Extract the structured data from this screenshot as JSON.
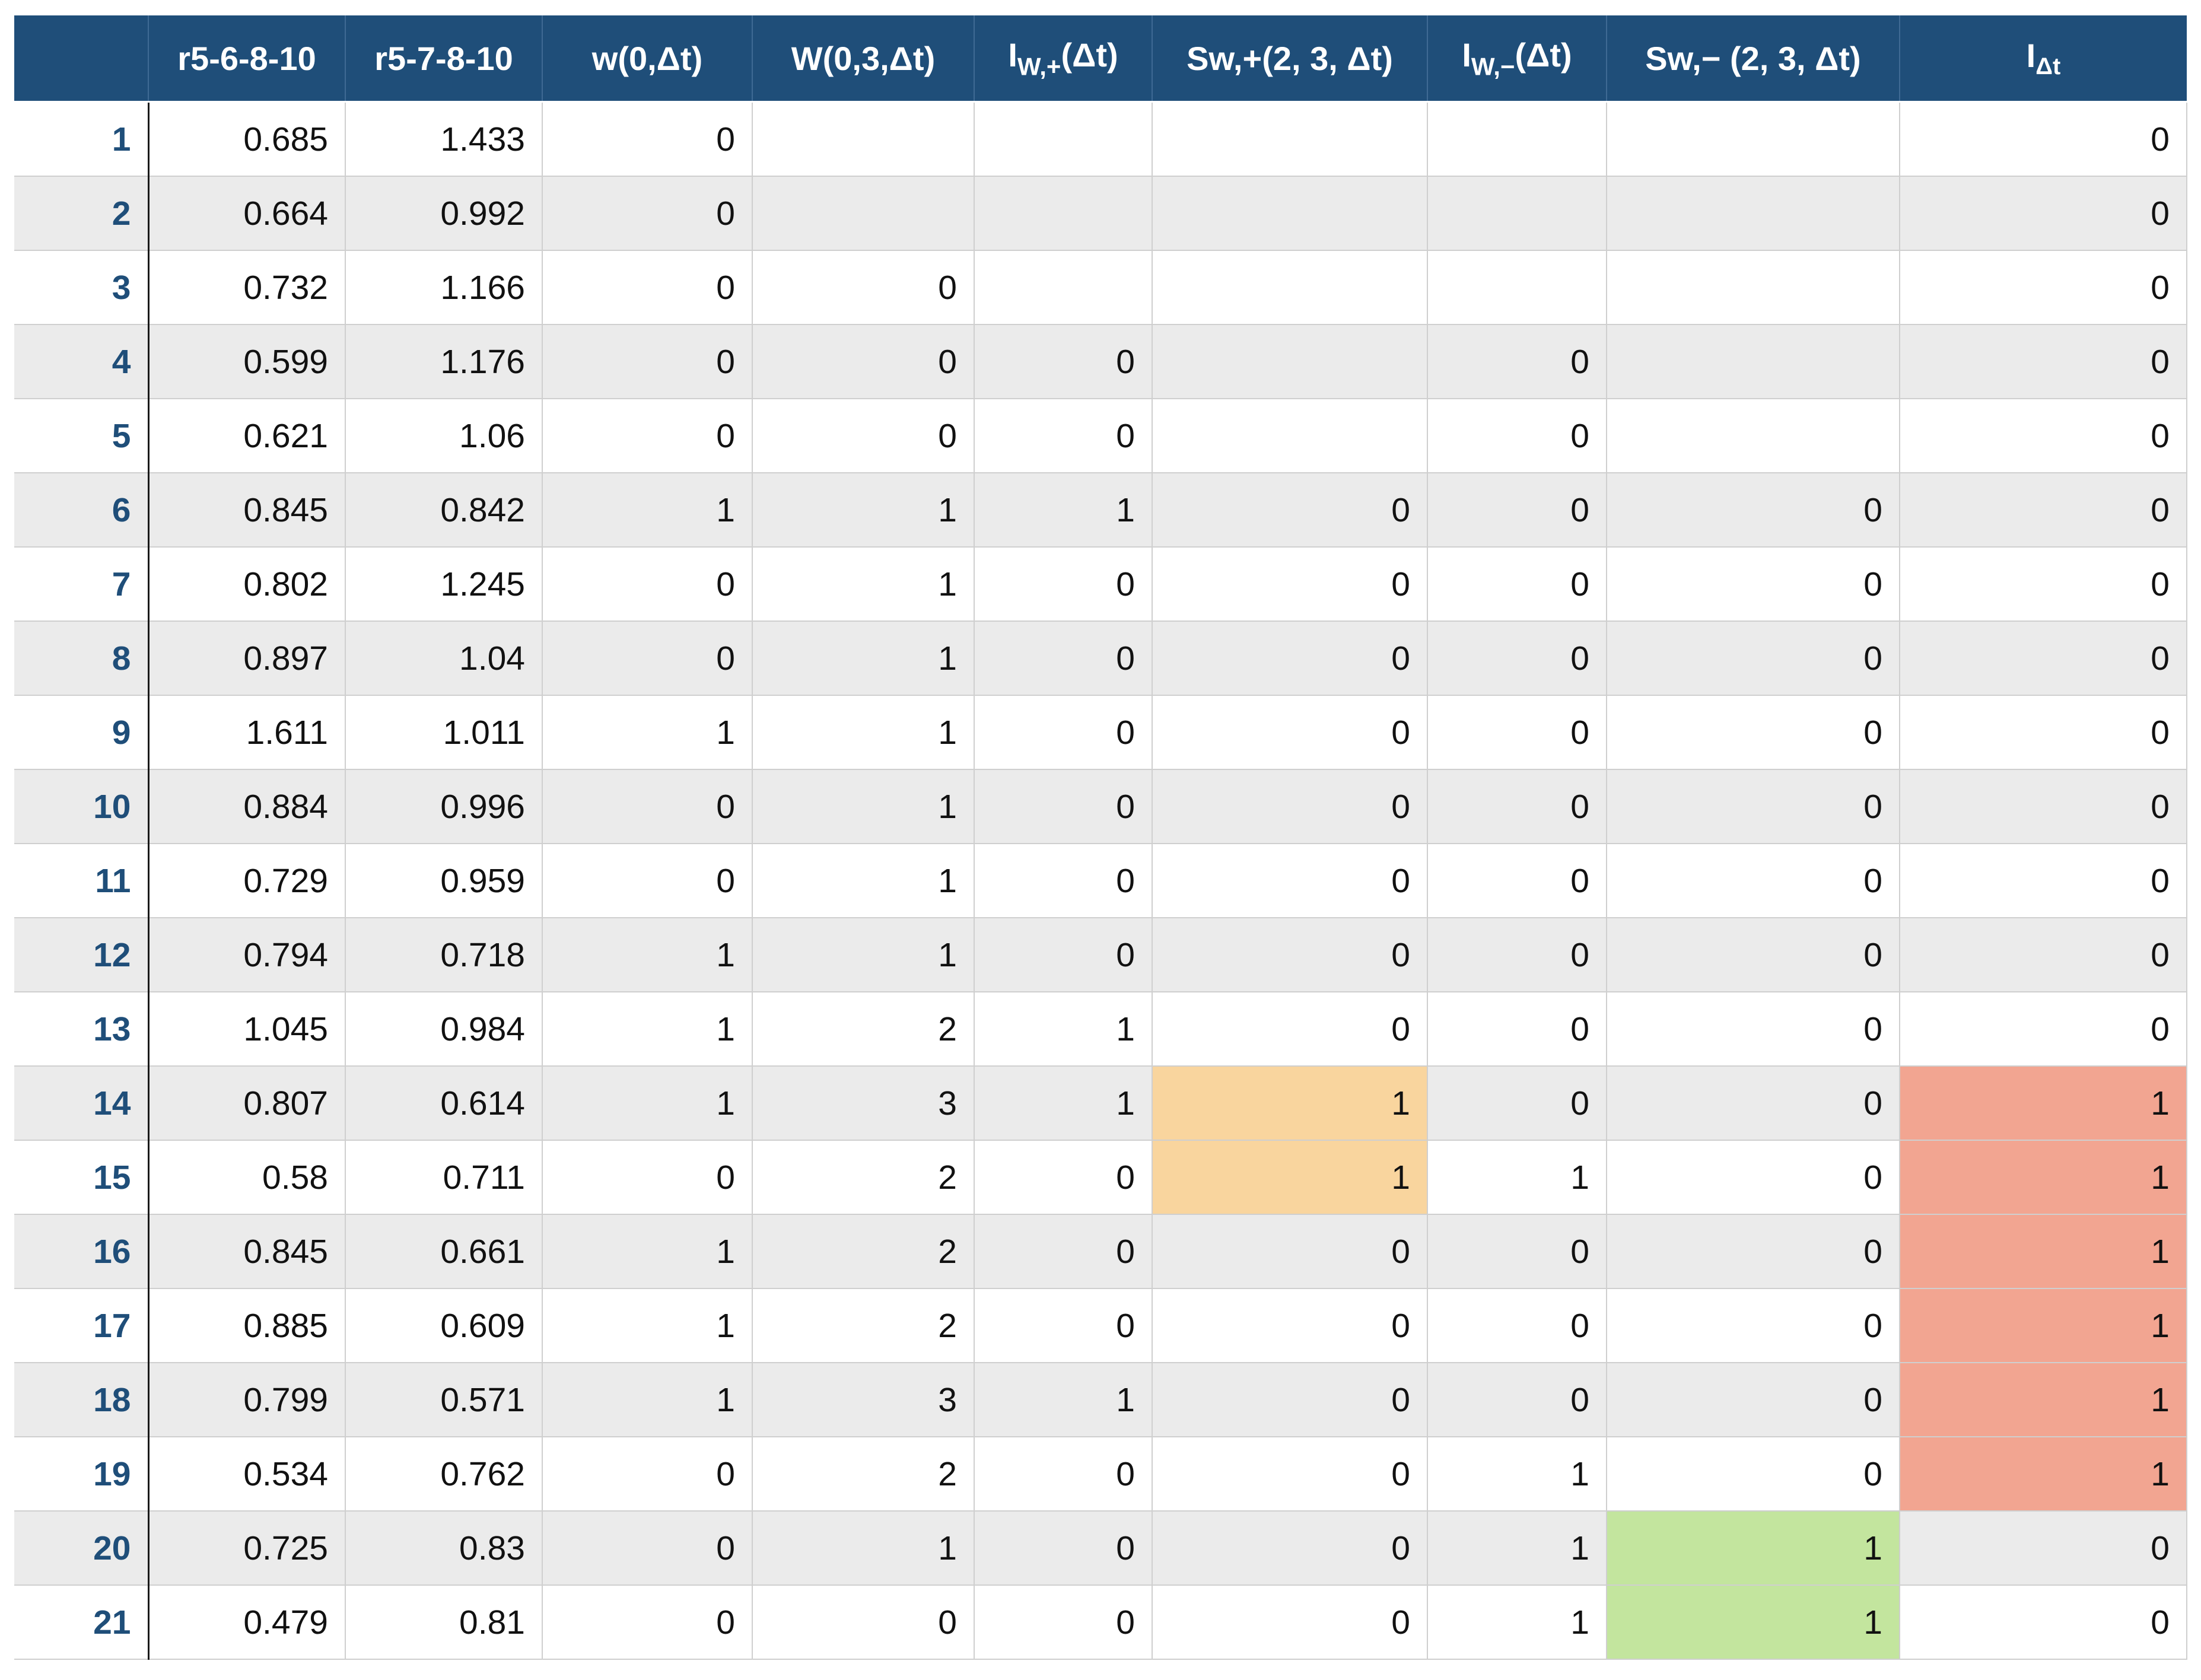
{
  "table": {
    "headers": {
      "index": "",
      "r5_6_8_10": "r5-6-8-10",
      "r5_7_8_10": "r5-7-8-10",
      "w_main": "w(0,Δt)",
      "W_main": "W(0,3,Δt)",
      "Iw_plus_main": "I",
      "Iw_plus_sub": "W,+",
      "Iw_plus_tail": "(Δt)",
      "Sw_plus_main": "S",
      "Sw_plus_sub": "w,+",
      "Sw_plus_tail": "(2, 3, Δt)",
      "Iw_minus_main": "I",
      "Iw_minus_sub": "W,−",
      "Iw_minus_tail": "(Δt)",
      "Sw_minus_main": "S",
      "Sw_minus_sub": "w,−",
      "Sw_minus_tail": " (2, 3, Δt)",
      "Idt_main": "I",
      "Idt_sub": "Δt"
    },
    "rows": [
      {
        "idx": "1",
        "r5_6": "0.685",
        "r5_7": "1.433",
        "w": "0",
        "W": "",
        "iw_plus": "",
        "sw_plus": "",
        "iw_minus": "",
        "sw_minus": "",
        "idt": "0"
      },
      {
        "idx": "2",
        "r5_6": "0.664",
        "r5_7": "0.992",
        "w": "0",
        "W": "",
        "iw_plus": "",
        "sw_plus": "",
        "iw_minus": "",
        "sw_minus": "",
        "idt": "0"
      },
      {
        "idx": "3",
        "r5_6": "0.732",
        "r5_7": "1.166",
        "w": "0",
        "W": "0",
        "iw_plus": "",
        "sw_plus": "",
        "iw_minus": "",
        "sw_minus": "",
        "idt": "0"
      },
      {
        "idx": "4",
        "r5_6": "0.599",
        "r5_7": "1.176",
        "w": "0",
        "W": "0",
        "iw_plus": "0",
        "sw_plus": "",
        "iw_minus": "0",
        "sw_minus": "",
        "idt": "0"
      },
      {
        "idx": "5",
        "r5_6": "0.621",
        "r5_7": "1.06",
        "w": "0",
        "W": "0",
        "iw_plus": "0",
        "sw_plus": "",
        "iw_minus": "0",
        "sw_minus": "",
        "idt": "0"
      },
      {
        "idx": "6",
        "r5_6": "0.845",
        "r5_7": "0.842",
        "w": "1",
        "W": "1",
        "iw_plus": "1",
        "sw_plus": "0",
        "iw_minus": "0",
        "sw_minus": "0",
        "idt": "0"
      },
      {
        "idx": "7",
        "r5_6": "0.802",
        "r5_7": "1.245",
        "w": "0",
        "W": "1",
        "iw_plus": "0",
        "sw_plus": "0",
        "iw_minus": "0",
        "sw_minus": "0",
        "idt": "0"
      },
      {
        "idx": "8",
        "r5_6": "0.897",
        "r5_7": "1.04",
        "w": "0",
        "W": "1",
        "iw_plus": "0",
        "sw_plus": "0",
        "iw_minus": "0",
        "sw_minus": "0",
        "idt": "0"
      },
      {
        "idx": "9",
        "r5_6": "1.611",
        "r5_7": "1.011",
        "w": "1",
        "W": "1",
        "iw_plus": "0",
        "sw_plus": "0",
        "iw_minus": "0",
        "sw_minus": "0",
        "idt": "0"
      },
      {
        "idx": "10",
        "r5_6": "0.884",
        "r5_7": "0.996",
        "w": "0",
        "W": "1",
        "iw_plus": "0",
        "sw_plus": "0",
        "iw_minus": "0",
        "sw_minus": "0",
        "idt": "0"
      },
      {
        "idx": "11",
        "r5_6": "0.729",
        "r5_7": "0.959",
        "w": "0",
        "W": "1",
        "iw_plus": "0",
        "sw_plus": "0",
        "iw_minus": "0",
        "sw_minus": "0",
        "idt": "0"
      },
      {
        "idx": "12",
        "r5_6": "0.794",
        "r5_7": "0.718",
        "w": "1",
        "W": "1",
        "iw_plus": "0",
        "sw_plus": "0",
        "iw_minus": "0",
        "sw_minus": "0",
        "idt": "0"
      },
      {
        "idx": "13",
        "r5_6": "1.045",
        "r5_7": "0.984",
        "w": "1",
        "W": "2",
        "iw_plus": "1",
        "sw_plus": "0",
        "iw_minus": "0",
        "sw_minus": "0",
        "idt": "0"
      },
      {
        "idx": "14",
        "r5_6": "0.807",
        "r5_7": "0.614",
        "w": "1",
        "W": "3",
        "iw_plus": "1",
        "sw_plus": "1",
        "iw_minus": "0",
        "sw_minus": "0",
        "idt": "1"
      },
      {
        "idx": "15",
        "r5_6": "0.58",
        "r5_7": "0.711",
        "w": "0",
        "W": "2",
        "iw_plus": "0",
        "sw_plus": "1",
        "iw_minus": "1",
        "sw_minus": "0",
        "idt": "1"
      },
      {
        "idx": "16",
        "r5_6": "0.845",
        "r5_7": "0.661",
        "w": "1",
        "W": "2",
        "iw_plus": "0",
        "sw_plus": "0",
        "iw_minus": "0",
        "sw_minus": "0",
        "idt": "1"
      },
      {
        "idx": "17",
        "r5_6": "0.885",
        "r5_7": "0.609",
        "w": "1",
        "W": "2",
        "iw_plus": "0",
        "sw_plus": "0",
        "iw_minus": "0",
        "sw_minus": "0",
        "idt": "1"
      },
      {
        "idx": "18",
        "r5_6": "0.799",
        "r5_7": "0.571",
        "w": "1",
        "W": "3",
        "iw_plus": "1",
        "sw_plus": "0",
        "iw_minus": "0",
        "sw_minus": "0",
        "idt": "1"
      },
      {
        "idx": "19",
        "r5_6": "0.534",
        "r5_7": "0.762",
        "w": "0",
        "W": "2",
        "iw_plus": "0",
        "sw_plus": "0",
        "iw_minus": "1",
        "sw_minus": "0",
        "idt": "1"
      },
      {
        "idx": "20",
        "r5_6": "0.725",
        "r5_7": "0.83",
        "w": "0",
        "W": "1",
        "iw_plus": "0",
        "sw_plus": "0",
        "iw_minus": "1",
        "sw_minus": "1",
        "idt": "0"
      },
      {
        "idx": "21",
        "r5_6": "0.479",
        "r5_7": "0.81",
        "w": "0",
        "W": "0",
        "iw_plus": "0",
        "sw_plus": "0",
        "iw_minus": "1",
        "sw_minus": "1",
        "idt": "0"
      }
    ],
    "highlights": {
      "sw_plus_rows": [
        "14",
        "15"
      ],
      "sw_minus_rows": [
        "20",
        "21"
      ],
      "idt_rows": [
        "14",
        "15",
        "16",
        "17",
        "18",
        "19"
      ]
    },
    "colors": {
      "header_bg": "#1f4e79",
      "index_text": "#1f4e79",
      "stripe": "#ebebeb",
      "sw_plus_highlight": "#f9d59e",
      "sw_minus_highlight": "#c3e59e",
      "idt_highlight": "#f2a591"
    }
  }
}
